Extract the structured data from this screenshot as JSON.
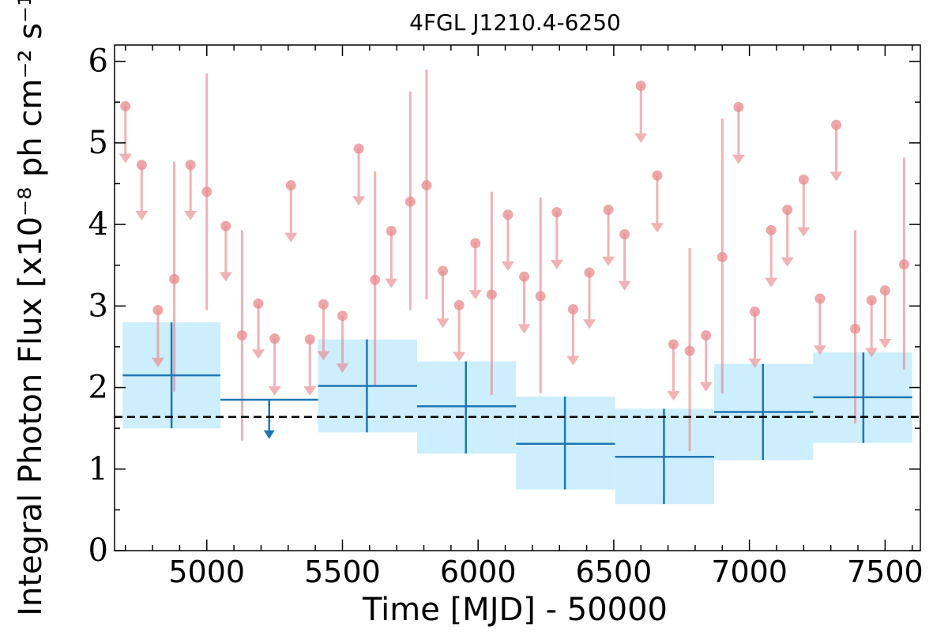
{
  "chart_data": {
    "type": "scatter",
    "title": "4FGL J1210.4-6250",
    "xlabel": "Time [MJD] - 50000",
    "ylabel": "Integral Photon Flux [x10⁻⁸ ph cm⁻² s⁻¹]",
    "xlim": [
      4660,
      7630
    ],
    "ylim": [
      0,
      6.2
    ],
    "x_ticks": [
      "5000",
      "5500",
      "6000",
      "6500",
      "7000",
      "7500"
    ],
    "y_ticks": [
      "0",
      "1",
      "2",
      "3",
      "4",
      "5",
      "6"
    ],
    "average_flux": 1.64,
    "colors": {
      "short_bins": "#e8898c",
      "long_bins": "#1f77b4",
      "long_bins_band": "#cdeefc",
      "average_line": "#000000"
    },
    "short_bins": [
      {
        "x": 4700,
        "y": 5.45,
        "upper_limit": true,
        "arrow_to": 4.75
      },
      {
        "x": 4760,
        "y": 4.73,
        "upper_limit": true,
        "arrow_to": 4.05
      },
      {
        "x": 4820,
        "y": 2.95,
        "upper_limit": true,
        "arrow_to": 2.25
      },
      {
        "x": 4880,
        "y": 3.33,
        "upper_limit": false,
        "err_low": 1.95,
        "err_high": 4.77
      },
      {
        "x": 4940,
        "y": 4.73,
        "upper_limit": true,
        "arrow_to": 4.05
      },
      {
        "x": 5000,
        "y": 4.4,
        "upper_limit": false,
        "err_low": 2.95,
        "err_high": 5.85
      },
      {
        "x": 5070,
        "y": 3.98,
        "upper_limit": true,
        "arrow_to": 3.3
      },
      {
        "x": 5130,
        "y": 2.64,
        "upper_limit": false,
        "err_low": 1.35,
        "err_high": 3.93
      },
      {
        "x": 5190,
        "y": 3.03,
        "upper_limit": true,
        "arrow_to": 2.35
      },
      {
        "x": 5250,
        "y": 2.6,
        "upper_limit": true,
        "arrow_to": 1.9
      },
      {
        "x": 5310,
        "y": 4.48,
        "upper_limit": true,
        "arrow_to": 3.78
      },
      {
        "x": 5380,
        "y": 2.59,
        "upper_limit": true,
        "arrow_to": 1.9
      },
      {
        "x": 5430,
        "y": 3.02,
        "upper_limit": true,
        "arrow_to": 2.33
      },
      {
        "x": 5500,
        "y": 2.88,
        "upper_limit": true,
        "arrow_to": 2.18
      },
      {
        "x": 5560,
        "y": 4.93,
        "upper_limit": true,
        "arrow_to": 4.23
      },
      {
        "x": 5620,
        "y": 3.32,
        "upper_limit": false,
        "err_low": 2.02,
        "err_high": 4.65
      },
      {
        "x": 5680,
        "y": 3.92,
        "upper_limit": true,
        "arrow_to": 3.22
      },
      {
        "x": 5750,
        "y": 4.28,
        "upper_limit": false,
        "err_low": 2.95,
        "err_high": 5.63
      },
      {
        "x": 5810,
        "y": 4.48,
        "upper_limit": false,
        "err_low": 3.08,
        "err_high": 5.9
      },
      {
        "x": 5870,
        "y": 3.43,
        "upper_limit": true,
        "arrow_to": 2.73
      },
      {
        "x": 5930,
        "y": 3.01,
        "upper_limit": true,
        "arrow_to": 2.32
      },
      {
        "x": 5990,
        "y": 3.77,
        "upper_limit": true,
        "arrow_to": 3.08
      },
      {
        "x": 6050,
        "y": 3.14,
        "upper_limit": false,
        "err_low": 1.91,
        "err_high": 4.4
      },
      {
        "x": 6110,
        "y": 4.12,
        "upper_limit": true,
        "arrow_to": 3.43
      },
      {
        "x": 6170,
        "y": 3.36,
        "upper_limit": true,
        "arrow_to": 2.66
      },
      {
        "x": 6230,
        "y": 3.12,
        "upper_limit": false,
        "err_low": 1.93,
        "err_high": 4.33
      },
      {
        "x": 6290,
        "y": 4.15,
        "upper_limit": true,
        "arrow_to": 3.45
      },
      {
        "x": 6350,
        "y": 2.96,
        "upper_limit": true,
        "arrow_to": 2.27
      },
      {
        "x": 6410,
        "y": 3.41,
        "upper_limit": true,
        "arrow_to": 2.72
      },
      {
        "x": 6480,
        "y": 4.18,
        "upper_limit": true,
        "arrow_to": 3.49
      },
      {
        "x": 6540,
        "y": 3.88,
        "upper_limit": true,
        "arrow_to": 3.19
      },
      {
        "x": 6600,
        "y": 5.7,
        "upper_limit": true,
        "arrow_to": 5.0
      },
      {
        "x": 6660,
        "y": 4.6,
        "upper_limit": true,
        "arrow_to": 3.9
      },
      {
        "x": 6720,
        "y": 2.53,
        "upper_limit": true,
        "arrow_to": 1.84
      },
      {
        "x": 6780,
        "y": 2.45,
        "upper_limit": false,
        "err_low": 1.22,
        "err_high": 3.71
      },
      {
        "x": 6840,
        "y": 2.64,
        "upper_limit": true,
        "arrow_to": 1.95
      },
      {
        "x": 6900,
        "y": 3.6,
        "upper_limit": false,
        "err_low": 1.93,
        "err_high": 5.3
      },
      {
        "x": 6960,
        "y": 5.44,
        "upper_limit": true,
        "arrow_to": 4.74
      },
      {
        "x": 7020,
        "y": 2.93,
        "upper_limit": true,
        "arrow_to": 2.24
      },
      {
        "x": 7080,
        "y": 3.93,
        "upper_limit": true,
        "arrow_to": 3.23
      },
      {
        "x": 7140,
        "y": 4.18,
        "upper_limit": true,
        "arrow_to": 3.48
      },
      {
        "x": 7200,
        "y": 4.55,
        "upper_limit": true,
        "arrow_to": 3.85
      },
      {
        "x": 7260,
        "y": 3.09,
        "upper_limit": true,
        "arrow_to": 2.4
      },
      {
        "x": 7320,
        "y": 5.22,
        "upper_limit": true,
        "arrow_to": 4.53
      },
      {
        "x": 7390,
        "y": 2.72,
        "upper_limit": false,
        "err_low": 1.56,
        "err_high": 3.93
      },
      {
        "x": 7450,
        "y": 3.07,
        "upper_limit": true,
        "arrow_to": 2.37
      },
      {
        "x": 7500,
        "y": 3.19,
        "upper_limit": true,
        "arrow_to": 2.48
      },
      {
        "x": 7570,
        "y": 3.51,
        "upper_limit": false,
        "err_low": 2.22,
        "err_high": 4.82
      }
    ],
    "long_bins": [
      {
        "x0": 4690,
        "x1": 5050,
        "x": 4870,
        "y": 2.15,
        "band_low": 1.5,
        "band_high": 2.8,
        "err_low": 1.5,
        "err_high": 2.8,
        "upper_limit": false
      },
      {
        "x0": 5050,
        "x1": 5410,
        "x": 5230,
        "y": 1.85,
        "upper_limit": true,
        "arrow_to": 1.37
      },
      {
        "x0": 5410,
        "x1": 5775,
        "x": 5590,
        "y": 2.02,
        "band_low": 1.45,
        "band_high": 2.59,
        "err_low": 1.45,
        "err_high": 2.59,
        "upper_limit": false
      },
      {
        "x0": 5775,
        "x1": 6140,
        "x": 5955,
        "y": 1.77,
        "band_low": 1.19,
        "band_high": 2.32,
        "err_low": 1.19,
        "err_high": 2.32,
        "upper_limit": false
      },
      {
        "x0": 6140,
        "x1": 6505,
        "x": 6320,
        "y": 1.31,
        "band_low": 0.75,
        "band_high": 1.89,
        "err_low": 0.75,
        "err_high": 1.89,
        "upper_limit": false
      },
      {
        "x0": 6505,
        "x1": 6870,
        "x": 6685,
        "y": 1.15,
        "band_low": 0.57,
        "band_high": 1.74,
        "err_low": 0.57,
        "err_high": 1.74,
        "upper_limit": false
      },
      {
        "x0": 6870,
        "x1": 7235,
        "x": 7050,
        "y": 1.7,
        "band_low": 1.11,
        "band_high": 2.29,
        "err_low": 1.11,
        "err_high": 2.29,
        "upper_limit": false
      },
      {
        "x0": 7235,
        "x1": 7600,
        "x": 7420,
        "y": 1.88,
        "band_low": 1.32,
        "band_high": 2.43,
        "err_low": 1.32,
        "err_high": 2.43,
        "upper_limit": false
      }
    ]
  }
}
